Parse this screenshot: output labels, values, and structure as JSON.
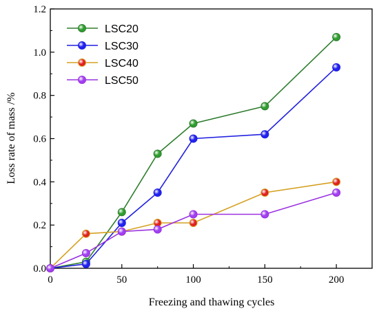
{
  "chart_data": {
    "type": "line",
    "title": "",
    "xlabel": "Freezing and thawing cycles",
    "ylabel": "Loss rate of mass /%",
    "xlim": [
      0,
      225
    ],
    "ylim": [
      0,
      1.2
    ],
    "xticks": [
      0,
      50,
      100,
      150,
      200
    ],
    "yticks": [
      0.0,
      0.2,
      0.4,
      0.6,
      0.8,
      1.0,
      1.2
    ],
    "xtick_labels": [
      "0",
      "50",
      "100",
      "150",
      "200"
    ],
    "ytick_labels": [
      "0.0",
      "0.2",
      "0.4",
      "0.6",
      "0.8",
      "1.0",
      "1.2"
    ],
    "grid": false,
    "legend_position": "top-left",
    "x": [
      0,
      25,
      50,
      75,
      100,
      150,
      200
    ],
    "series": [
      {
        "name": "LSC20",
        "color": "#2e7d2e",
        "marker_color": "#2f9e2f",
        "values": [
          0,
          0.03,
          0.26,
          0.53,
          0.67,
          0.75,
          1.07
        ]
      },
      {
        "name": "LSC30",
        "color": "#1f1fe0",
        "marker_color": "#2222ee",
        "values": [
          0,
          0.02,
          0.21,
          0.35,
          0.6,
          0.62,
          0.93
        ]
      },
      {
        "name": "LSC40",
        "color": "#d4a020",
        "marker_color": "#e02020",
        "values": [
          0,
          0.16,
          0.17,
          0.21,
          0.21,
          0.35,
          0.4
        ]
      },
      {
        "name": "LSC50",
        "color": "#9a30e0",
        "marker_color": "#a040f0",
        "values": [
          0,
          0.07,
          0.17,
          0.18,
          0.25,
          0.25,
          0.35
        ]
      }
    ]
  }
}
